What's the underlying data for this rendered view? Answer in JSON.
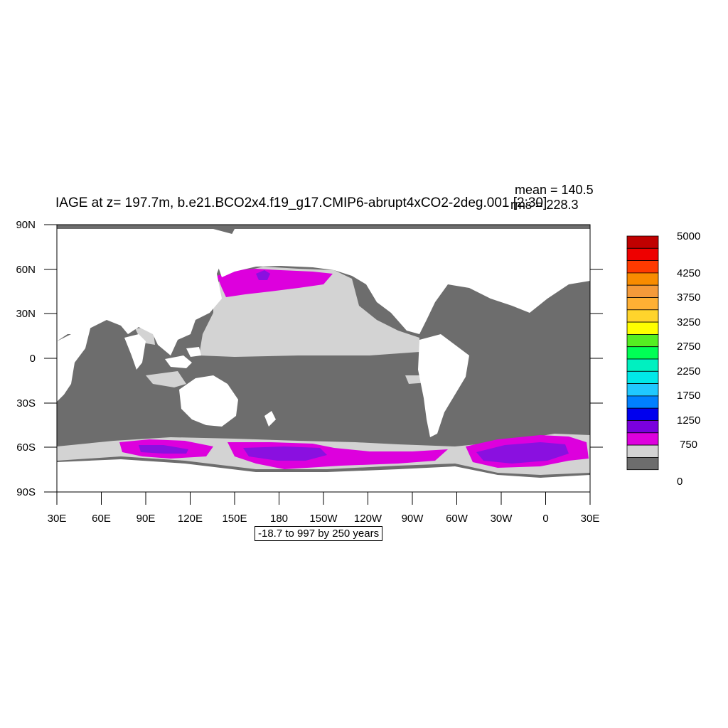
{
  "title": "IAGE at z= 197.7m, b.e21.BCO2x4.f19_g17.CMIP6-abrupt4xCO2-2deg.001 [2:30]",
  "stats": {
    "mean": "mean = 140.5",
    "rms": "rms = 228.3"
  },
  "contour_note": "-18.7 to 997 by 250 years",
  "lat_labels": [
    "90N",
    "60N",
    "30N",
    "0",
    "30S",
    "60S",
    "90S"
  ],
  "lon_labels": [
    "30E",
    "60E",
    "90E",
    "120E",
    "150E",
    "180",
    "150W",
    "120W",
    "90W",
    "60W",
    "30W",
    "0",
    "30E"
  ],
  "colorbar": {
    "labels": [
      "5000",
      "4250",
      "3750",
      "3250",
      "2750",
      "2250",
      "1750",
      "1250",
      "750",
      "0"
    ],
    "colors_top_to_bottom": [
      "#c00000",
      "#ee0000",
      "#ff3a00",
      "#f88c00",
      "#f49a3a",
      "#ffb034",
      "#ffd42c",
      "#ffff00",
      "#55ee22",
      "#00ff55",
      "#00f0c0",
      "#00e8e8",
      "#20c8ff",
      "#0080ff",
      "#0000ee",
      "#7a00dd",
      "#dd00dd",
      "#d3d3d3",
      "#6d6d6d"
    ]
  },
  "legend_colors": {
    "land": "#ffffff",
    "level_0": "#6d6d6d",
    "level_1": "#d3d3d3",
    "level_2": "#dd00dd",
    "level_3": "#8a10e0"
  }
}
